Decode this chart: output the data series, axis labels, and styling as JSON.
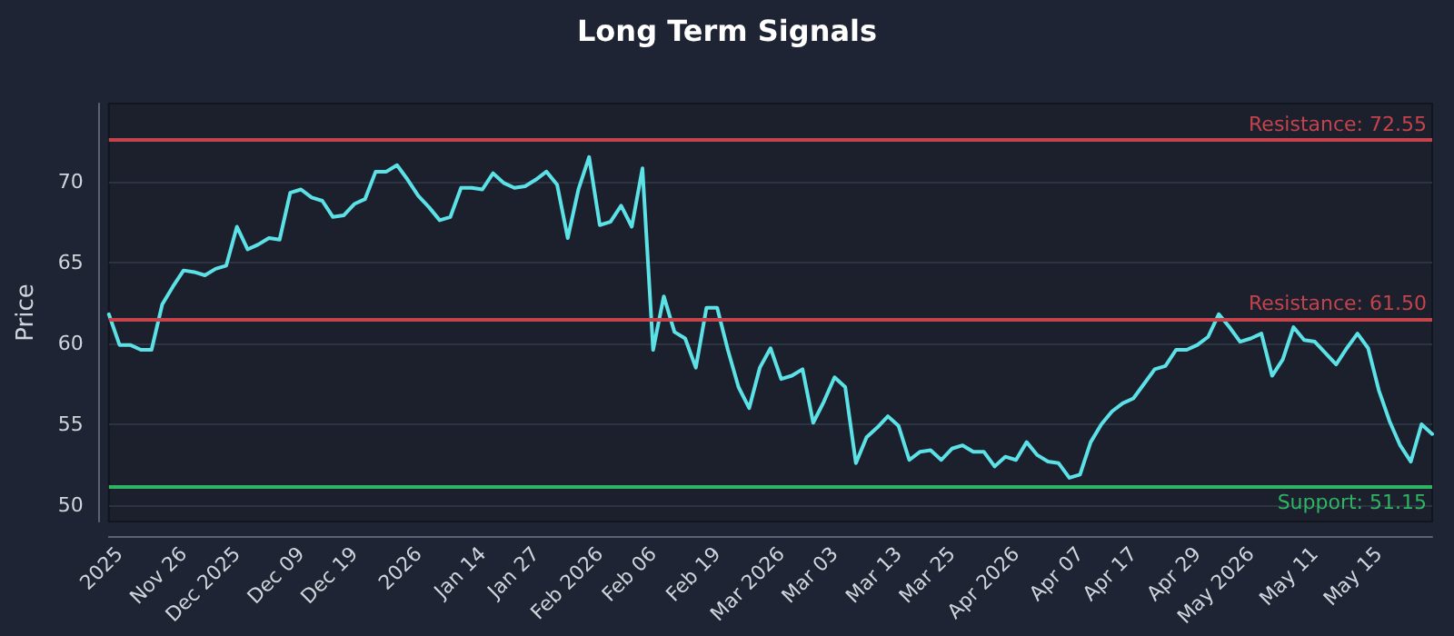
{
  "chart_data": {
    "type": "line",
    "title": "Long Term Signals",
    "ylabel": "Price",
    "categories": [
      null,
      "2025",
      null,
      null,
      null,
      null,
      null,
      "Nov 26",
      null,
      null,
      null,
      null,
      "Dec 2025",
      null,
      null,
      null,
      null,
      null,
      "Dec 09",
      null,
      null,
      null,
      null,
      "Dec 19",
      null,
      null,
      null,
      null,
      null,
      "2026",
      null,
      null,
      null,
      null,
      null,
      "Jan 14",
      null,
      null,
      null,
      null,
      "Jan 27",
      null,
      null,
      null,
      null,
      null,
      "Feb 2026",
      null,
      null,
      null,
      null,
      "Feb 06",
      null,
      null,
      null,
      null,
      null,
      "Feb 19",
      null,
      null,
      null,
      null,
      null,
      "Mar 2026",
      null,
      null,
      null,
      null,
      "Mar 03",
      null,
      null,
      null,
      null,
      null,
      "Mar 13",
      null,
      null,
      null,
      null,
      "Mar 25",
      null,
      null,
      null,
      null,
      null,
      "Apr 2026",
      null,
      null,
      null,
      null,
      null,
      "Apr 07",
      null,
      null,
      null,
      null,
      "Apr 17",
      null,
      null,
      null,
      null,
      null,
      "Apr 29",
      null,
      null,
      null,
      null,
      "May 2026",
      null,
      null,
      null,
      null,
      null,
      "May 11",
      null,
      null,
      null,
      null,
      null,
      "May 15",
      null,
      null,
      null,
      null,
      null
    ],
    "series": [
      {
        "color": "#5ce1e6",
        "values": [
          61.8,
          59.9,
          59.9,
          59.6,
          59.6,
          62.4,
          63.5,
          64.5,
          64.4,
          64.2,
          64.6,
          64.8,
          67.2,
          65.8,
          66.1,
          66.5,
          66.4,
          69.3,
          69.5,
          69.0,
          68.8,
          67.8,
          67.9,
          68.6,
          68.9,
          70.6,
          70.6,
          71.0,
          70.1,
          69.1,
          68.4,
          67.6,
          67.8,
          69.6,
          69.6,
          69.5,
          70.5,
          69.9,
          69.6,
          69.7,
          70.1,
          70.6,
          69.8,
          66.5,
          69.5,
          71.5,
          67.3,
          67.5,
          68.5,
          67.2,
          70.8,
          59.6,
          62.9,
          60.7,
          60.3,
          58.5,
          62.2,
          62.2,
          59.6,
          57.3,
          56.0,
          58.5,
          59.7,
          57.8,
          58.0,
          58.4,
          55.1,
          56.4,
          57.9,
          57.3,
          52.6,
          54.2,
          54.8,
          55.5,
          54.9,
          52.8,
          53.3,
          53.4,
          52.8,
          53.5,
          53.7,
          53.3,
          53.3,
          52.4,
          53.0,
          52.8,
          53.9,
          53.1,
          52.7,
          52.6,
          51.7,
          51.9,
          53.9,
          55.0,
          55.8,
          56.3,
          56.6,
          57.5,
          58.4,
          58.6,
          59.6,
          59.6,
          59.9,
          60.4,
          61.8,
          61.0,
          60.1,
          60.3,
          60.6,
          58.0,
          59.0,
          61.0,
          60.2,
          60.1,
          59.4,
          58.7,
          59.7,
          60.6,
          59.7,
          57.1,
          55.2,
          53.7,
          52.7,
          55.0,
          54.4
        ]
      }
    ],
    "ylim": [
      49,
      74.8
    ],
    "yticks": [
      50,
      55,
      60,
      65,
      70
    ],
    "ref_lines": [
      {
        "axis": "y",
        "value": 72.55,
        "label": "Resistance: 72.55",
        "color": "#c4434c"
      },
      {
        "axis": "y",
        "value": 61.5,
        "label": "Resistance: 61.50",
        "color": "#c4434c"
      },
      {
        "axis": "y",
        "value": 51.15,
        "label": "Support: 51.15",
        "color": "#2fb463"
      }
    ],
    "grid": "y",
    "marker": "none",
    "line_style": "solid"
  }
}
